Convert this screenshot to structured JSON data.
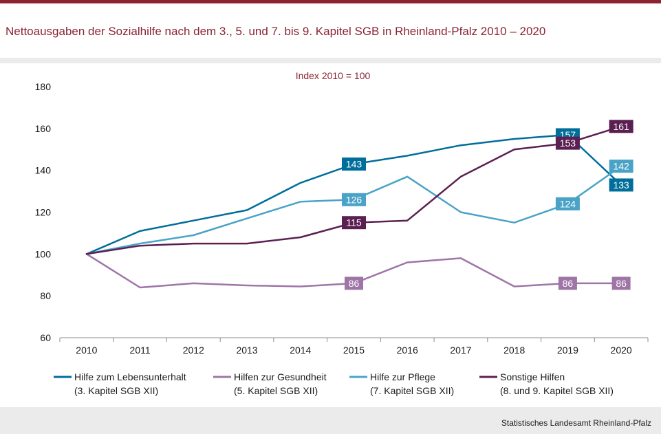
{
  "title": "Nettoausgaben der Sozialhilfe nach dem 3., 5. und 7. bis 9. Kapitel SGB in Rheinland-Pfalz 2010 – 2020",
  "source": "Statistisches Landesamt Rheinland-Pfalz",
  "chart_data": {
    "type": "line",
    "subtitle": "Index  2010 = 100",
    "categories": [
      "2010",
      "2011",
      "2012",
      "2013",
      "2014",
      "2015",
      "2016",
      "2017",
      "2018",
      "2019",
      "2020"
    ],
    "ylim": [
      60,
      180
    ],
    "yticks": [
      60,
      80,
      100,
      120,
      140,
      160,
      180
    ],
    "grid": false,
    "legend": "bottom",
    "series": [
      {
        "name": "Hilfe zum Lebensunterhalt",
        "name2": "(3. Kapitel SGB XII)",
        "color": "#006e9a",
        "values": [
          100,
          111,
          116,
          121,
          134,
          143,
          147,
          152,
          155,
          157,
          133
        ],
        "labels": [
          {
            "index": 5,
            "text": "143"
          },
          {
            "index": 9,
            "text": "157"
          },
          {
            "index": 10,
            "text": "133"
          }
        ]
      },
      {
        "name": "Hilfen zur Gesundheit",
        "name2": "(5. Kapitel SGB XII)",
        "color": "#9e75a6",
        "values": [
          100,
          84,
          86,
          85,
          84.5,
          86,
          96,
          98,
          84.5,
          86,
          86
        ],
        "labels": [
          {
            "index": 5,
            "text": "86"
          },
          {
            "index": 9,
            "text": "86"
          },
          {
            "index": 10,
            "text": "86"
          }
        ]
      },
      {
        "name": "Hilfe zur Pflege",
        "name2": "(7. Kapitel SGB XII)",
        "color": "#4aa3c7",
        "values": [
          100,
          105,
          109,
          117,
          125,
          126,
          137,
          120,
          115,
          124,
          142
        ],
        "labels": [
          {
            "index": 5,
            "text": "126"
          },
          {
            "index": 9,
            "text": "124"
          },
          {
            "index": 10,
            "text": "142"
          }
        ]
      },
      {
        "name": "Sonstige Hilfen",
        "name2": "(8. und 9. Kapitel SGB XII)",
        "color": "#5b1f52",
        "values": [
          100,
          104,
          105,
          105,
          108,
          115,
          116,
          137,
          150,
          153,
          161
        ],
        "labels": [
          {
            "index": 5,
            "text": "115"
          },
          {
            "index": 9,
            "text": "153"
          },
          {
            "index": 10,
            "text": "161"
          }
        ]
      }
    ]
  }
}
